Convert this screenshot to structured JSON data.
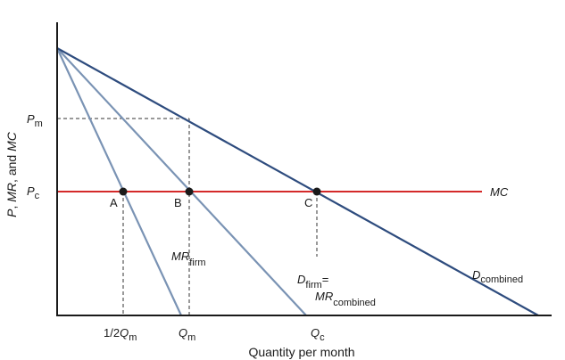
{
  "colors": {
    "axis": "#1a1a1a",
    "demand_combined": "#2e4c7e",
    "mr_lines": "#7a93b4",
    "mc": "#d42a2a",
    "guides": "#333333",
    "points": "#1a1a1a"
  },
  "axes": {
    "x_title": "Quantity per month",
    "y_title": {
      "p": "P",
      "sep1": ", ",
      "mr": "MR",
      "sep2": ", and ",
      "mc": "MC"
    }
  },
  "y_ticks": {
    "pm": {
      "main": "P",
      "sub": "m"
    },
    "pc": {
      "main": "P",
      "sub": "c"
    }
  },
  "x_ticks": {
    "half_qm": {
      "prefix": "1/2",
      "main": "Q",
      "sub": "m"
    },
    "qm": {
      "main": "Q",
      "sub": "m"
    },
    "qc": {
      "main": "Q",
      "sub": "c"
    }
  },
  "points": {
    "a": "A",
    "b": "B",
    "c": "C"
  },
  "curve_labels": {
    "mc": "MC",
    "mr_firm": {
      "main": "MR",
      "sub": "firm"
    },
    "d_firm": {
      "main": "D",
      "sub": "firm",
      "suffix": "="
    },
    "mr_combined": {
      "main": "MR",
      "sub": "combined"
    },
    "d_combined": {
      "main": "D",
      "sub": "combined"
    }
  }
}
